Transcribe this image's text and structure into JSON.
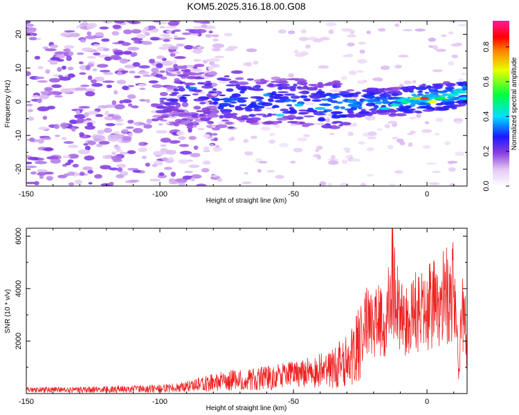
{
  "chart_data": [
    {
      "type": "heatmap",
      "title": "KOM5.2025.316.18.00.G08",
      "xlabel": "Height of straight line (km)",
      "ylabel": "Frequency (Hz)",
      "xlim": [
        -150,
        15
      ],
      "ylim": [
        -25,
        24
      ],
      "x_ticks": [
        -150,
        -100,
        -50,
        0
      ],
      "y_ticks": [
        -20,
        -10,
        0,
        10,
        20
      ],
      "colorbar": {
        "label": "Normalized spectral amplitude",
        "range": [
          0,
          0.95
        ],
        "ticks": [
          0.0,
          0.2,
          0.4,
          0.6,
          0.8
        ]
      },
      "ridge": {
        "description_points_x": [
          -95,
          -80,
          -65,
          -50,
          -35,
          -20,
          -10,
          0,
          10,
          15
        ],
        "description_points_freq": [
          2,
          1,
          0,
          0,
          -1,
          0,
          0,
          1,
          2,
          3
        ],
        "peak_x": -2,
        "peak_freq": 1,
        "peak_value": 0.9
      },
      "noise_region_x": [
        -150,
        -100
      ]
    },
    {
      "type": "line",
      "xlabel": "Height of straight line (km)",
      "ylabel": "SNR (10 * v/v)",
      "xlim": [
        -150,
        15
      ],
      "ylim": [
        0,
        6300
      ],
      "x_ticks": [
        -150,
        -100,
        -50,
        0
      ],
      "y_ticks": [
        2000,
        4000,
        6000
      ],
      "color": "#ee2222",
      "series": [
        {
          "name": "SNR",
          "x": [
            -150,
            -130,
            -110,
            -95,
            -85,
            -75,
            -65,
            -55,
            -45,
            -35,
            -28,
            -25,
            -22,
            -20,
            -18,
            -15,
            -13,
            -10,
            -5,
            0,
            5,
            8,
            10,
            12,
            13,
            15
          ],
          "y": [
            200,
            200,
            250,
            300,
            500,
            700,
            800,
            900,
            1100,
            1400,
            2000,
            3000,
            4500,
            3500,
            4000,
            3800,
            6300,
            3800,
            4200,
            4500,
            4800,
            5200,
            5800,
            800,
            5000,
            2500
          ]
        }
      ]
    }
  ]
}
